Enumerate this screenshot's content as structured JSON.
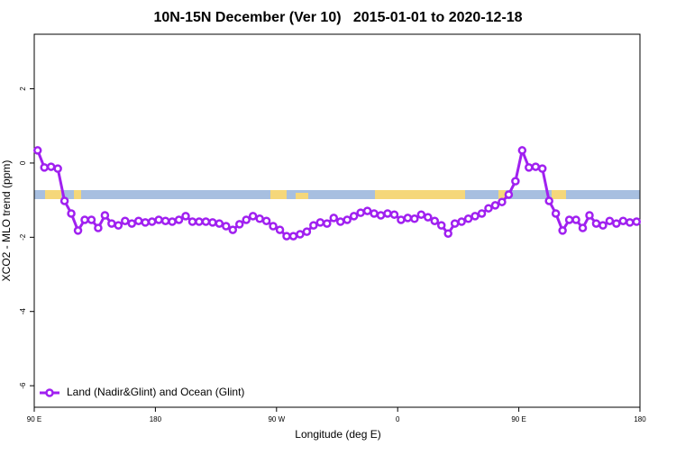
{
  "chart_data": {
    "type": "line",
    "title": "10N-15N December (Ver 10)   2015-01-01 to 2020-12-18",
    "x_label": "Longitude (deg E)",
    "y_label": "XCO2 - MLO trend (ppm)",
    "x": [
      92.5,
      97.5,
      102.5,
      107.5,
      112.5,
      117.5,
      122.5,
      127.5,
      132.5,
      137.5,
      142.5,
      147.5,
      152.5,
      157.5,
      162.5,
      167.5,
      172.5,
      177.5,
      182.5,
      187.5,
      192.5,
      197.5,
      202.5,
      207.5,
      212.5,
      217.5,
      222.5,
      227.5,
      232.5,
      237.5,
      242.5,
      247.5,
      252.5,
      257.5,
      262.5,
      267.5,
      272.5,
      277.5,
      282.5,
      287.5,
      292.5,
      297.5,
      302.5,
      307.5,
      312.5,
      317.5,
      322.5,
      327.5,
      332.5,
      337.5,
      342.5,
      347.5,
      352.5,
      357.5,
      362.5,
      367.5,
      372.5,
      377.5,
      382.5,
      387.5,
      392.5,
      397.5,
      402.5,
      407.5,
      412.5,
      417.5,
      422.5,
      427.5,
      432.5,
      437.5,
      442.5,
      447.5,
      452.5,
      457.5,
      462.5,
      467.5,
      472.5,
      477.5,
      482.5,
      487.5,
      492.5,
      497.5,
      502.5,
      507.5,
      512.5,
      517.5,
      522.5,
      527.5,
      532.5,
      537.5
    ],
    "series": [
      {
        "name": "Land (Nadir&Glint) and Ocean (Glint)",
        "color": "#a020f0",
        "values": [
          0.34,
          -0.12,
          -0.1,
          -0.15,
          -1.02,
          -1.36,
          -1.82,
          -1.53,
          -1.53,
          -1.75,
          -1.41,
          -1.63,
          -1.68,
          -1.56,
          -1.63,
          -1.56,
          -1.6,
          -1.58,
          -1.53,
          -1.56,
          -1.58,
          -1.53,
          -1.43,
          -1.58,
          -1.58,
          -1.58,
          -1.6,
          -1.63,
          -1.7,
          -1.8,
          -1.65,
          -1.53,
          -1.43,
          -1.5,
          -1.56,
          -1.7,
          -1.8,
          -1.97,
          -1.97,
          -1.92,
          -1.85,
          -1.68,
          -1.6,
          -1.63,
          -1.48,
          -1.58,
          -1.53,
          -1.43,
          -1.34,
          -1.29,
          -1.36,
          -1.41,
          -1.36,
          -1.39,
          -1.53,
          -1.48,
          -1.5,
          -1.39,
          -1.46,
          -1.56,
          -1.68,
          -1.9,
          -1.63,
          -1.58,
          -1.5,
          -1.43,
          -1.36,
          -1.22,
          -1.14,
          -1.05,
          -0.85,
          -0.49,
          0.34,
          -0.12,
          -0.1,
          -0.15,
          -1.02,
          -1.36,
          -1.82,
          -1.53,
          -1.53,
          -1.75,
          -1.41,
          -1.63,
          -1.68,
          -1.56,
          -1.63,
          -1.56,
          -1.6,
          -1.58
        ]
      }
    ],
    "xlim": [
      90,
      540
    ],
    "xticks": [
      {
        "value": 90,
        "label": "90 E"
      },
      180,
      {
        "value": 270,
        "label": "90 W"
      },
      {
        "value": 360,
        "label": "0"
      },
      {
        "value": 450,
        "label": "90 E"
      },
      {
        "value": 540,
        "label": "180"
      }
    ],
    "ylim": [
      -6.58,
      3.47
    ],
    "yticks": [
      2,
      0,
      -2,
      -4,
      -6
    ],
    "legend": "bottom-left"
  }
}
